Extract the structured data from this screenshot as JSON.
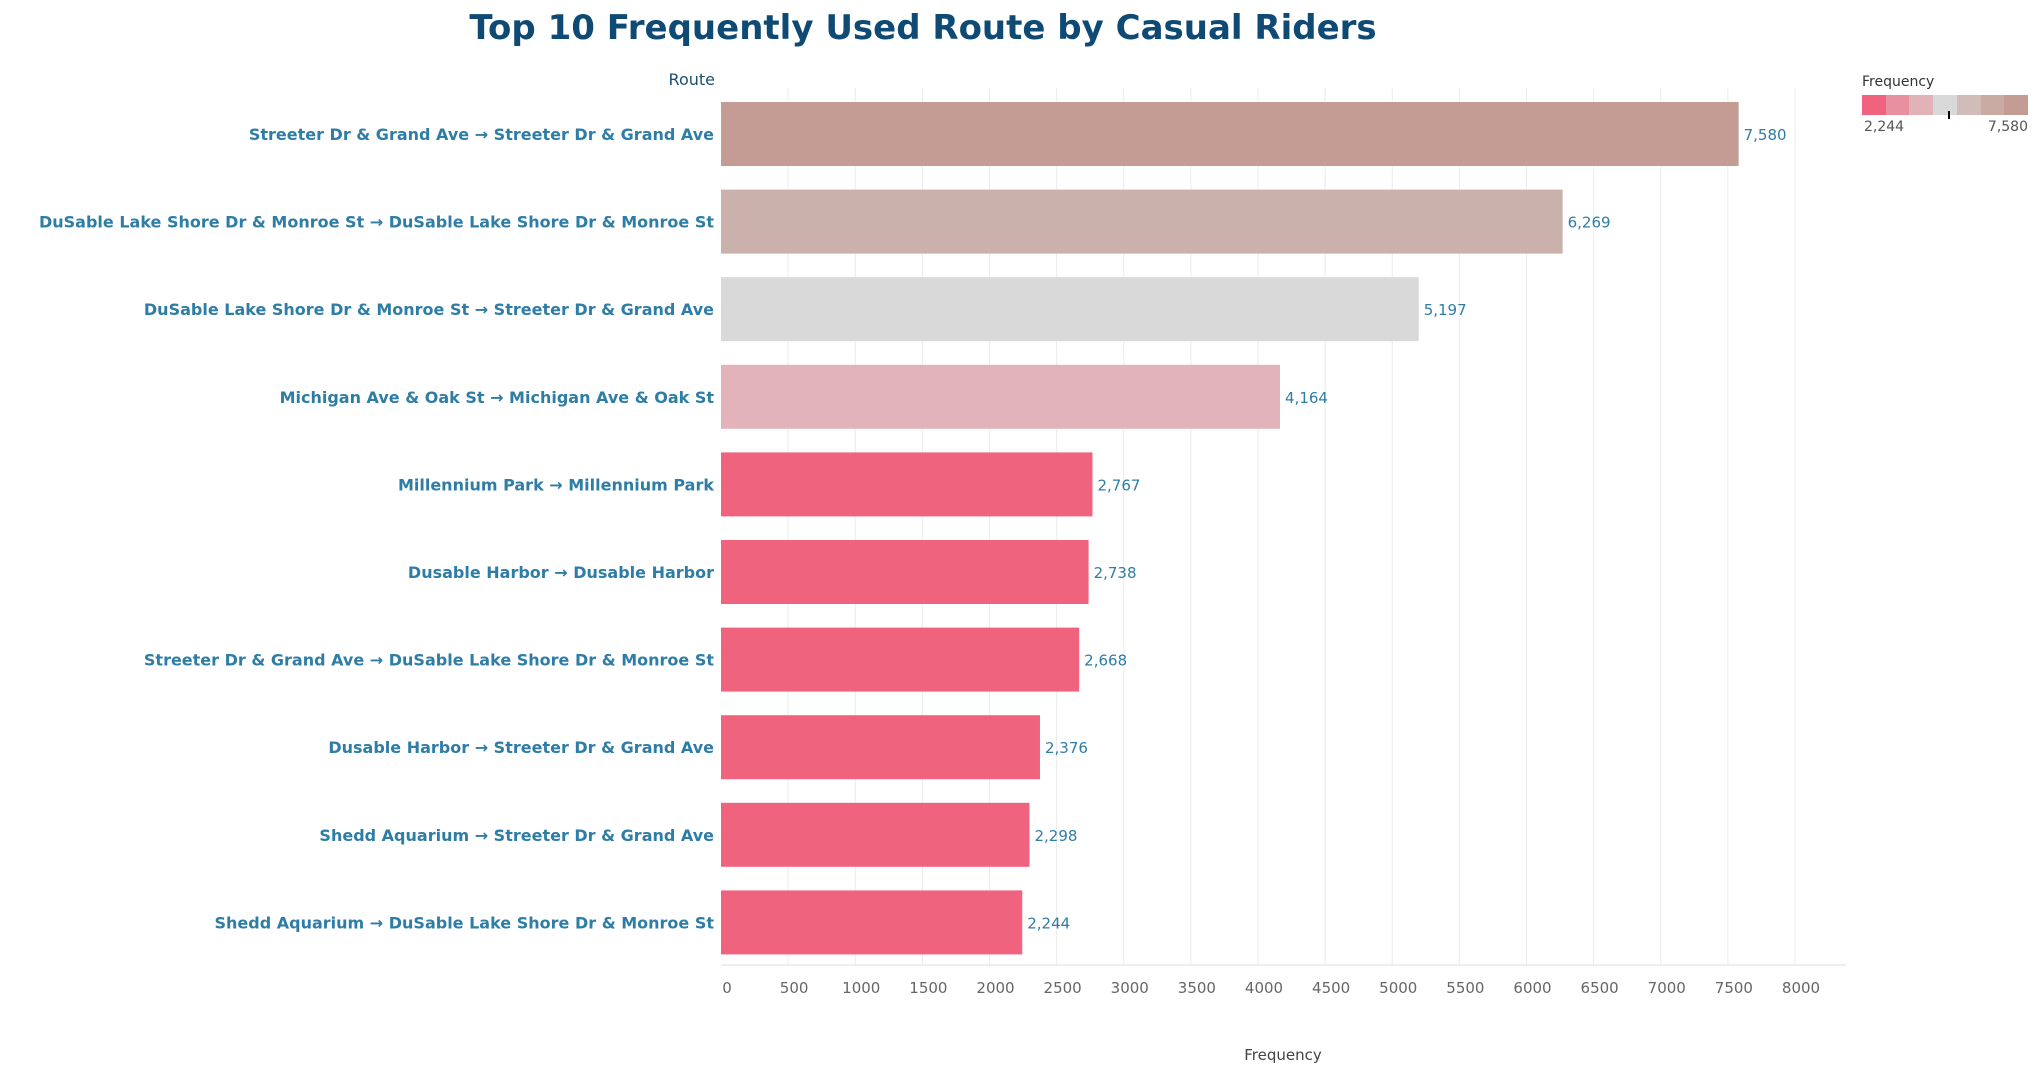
{
  "title": "Top 10 Frequently Used Route by Casual Riders",
  "row_header": "Route",
  "legend": {
    "title": "Frequency",
    "min_label": "2,244",
    "max_label": "7,580",
    "colors": [
      "#f0637e",
      "#e88fa0",
      "#e2b2b9",
      "#d9d9d9",
      "#d1bcb7",
      "#c9aba4",
      "#c39c93"
    ]
  },
  "chart_data": {
    "type": "bar",
    "orientation": "horizontal",
    "title": "Top 10 Frequently Used Route by Casual Riders",
    "ylabel": "Route",
    "xlabel": "Frequency",
    "xlim": [
      0,
      8000
    ],
    "xticks": [
      "0",
      "500",
      "1000",
      "1500",
      "2000",
      "2500",
      "3000",
      "3500",
      "4000",
      "4500",
      "5000",
      "5500",
      "6000",
      "6500",
      "7000",
      "7500",
      "8000"
    ],
    "grid": "vertical",
    "legend": "top-right",
    "categories": [
      "Streeter Dr & Grand Ave → Streeter Dr & Grand Ave",
      "DuSable Lake Shore Dr & Monroe St → DuSable Lake Shore Dr & Monroe St",
      "DuSable Lake Shore Dr & Monroe St → Streeter Dr & Grand Ave",
      "Michigan Ave & Oak St → Michigan Ave & Oak St",
      "Millennium Park → Millennium Park",
      "Dusable Harbor → Dusable Harbor",
      "Streeter Dr & Grand Ave → DuSable Lake Shore Dr & Monroe St",
      "Dusable Harbor → Streeter Dr & Grand Ave",
      "Shedd Aquarium → Streeter Dr & Grand Ave",
      "Shedd Aquarium → DuSable Lake Shore Dr & Monroe St"
    ],
    "values": [
      7580,
      6269,
      5197,
      4164,
      2767,
      2738,
      2668,
      2376,
      2298,
      2244
    ],
    "value_labels": [
      "7,580",
      "6,269",
      "5,197",
      "4,164",
      "2,767",
      "2,738",
      "2,668",
      "2,376",
      "2,298",
      "2,244"
    ],
    "colors": [
      "#c49c93",
      "#cbb1ab",
      "#d9d9d9",
      "#e2b3bb",
      "#f0637e",
      "#f0637e",
      "#f0637e",
      "#f0637e",
      "#f0637e",
      "#f0637e"
    ]
  }
}
